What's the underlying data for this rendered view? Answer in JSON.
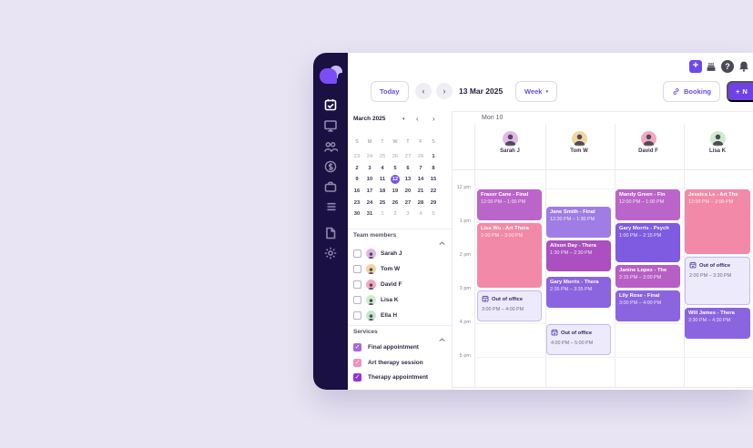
{
  "colors": {
    "accent": "#7048e8",
    "page_bg": "#e8e4f3",
    "sidebar_bg": "#1a1042",
    "selected_day_bg": "#7a52e8",
    "ooo_bg": "#edebfb",
    "ooo_border": "#c7baf3"
  },
  "topbar": {
    "icons": [
      "quick-add-icon",
      "whats-new-icon",
      "help-icon",
      "notifications-icon"
    ]
  },
  "header": {
    "today_label": "Today",
    "date_label": "13 Mar 2025",
    "view_label": "Week",
    "booking_label": "Booking",
    "new_label": "N"
  },
  "sidebar": {
    "icons": [
      "calendar-check",
      "monitor",
      "team",
      "payments",
      "briefcase",
      "list",
      "document",
      "settings"
    ],
    "active": "calendar-check"
  },
  "mini_calendar": {
    "month_label": "March 2025",
    "day_headers": [
      "S",
      "M",
      "T",
      "W",
      "T",
      "F",
      "S"
    ],
    "days": [
      {
        "d": "23",
        "muted": true
      },
      {
        "d": "24",
        "muted": true
      },
      {
        "d": "25",
        "muted": true
      },
      {
        "d": "26",
        "muted": true
      },
      {
        "d": "27",
        "muted": true
      },
      {
        "d": "28",
        "muted": true
      },
      {
        "d": "1"
      },
      {
        "d": "2"
      },
      {
        "d": "3"
      },
      {
        "d": "4"
      },
      {
        "d": "5"
      },
      {
        "d": "6"
      },
      {
        "d": "7"
      },
      {
        "d": "8"
      },
      {
        "d": "9"
      },
      {
        "d": "10"
      },
      {
        "d": "11"
      },
      {
        "d": "12",
        "selected": true
      },
      {
        "d": "13"
      },
      {
        "d": "14"
      },
      {
        "d": "15"
      },
      {
        "d": "16"
      },
      {
        "d": "17"
      },
      {
        "d": "18"
      },
      {
        "d": "19"
      },
      {
        "d": "20"
      },
      {
        "d": "21"
      },
      {
        "d": "22"
      },
      {
        "d": "23"
      },
      {
        "d": "24"
      },
      {
        "d": "25"
      },
      {
        "d": "26"
      },
      {
        "d": "27"
      },
      {
        "d": "28"
      },
      {
        "d": "29"
      },
      {
        "d": "30"
      },
      {
        "d": "31"
      },
      {
        "d": "1",
        "muted": true
      },
      {
        "d": "2",
        "muted": true
      },
      {
        "d": "3",
        "muted": true
      },
      {
        "d": "4",
        "muted": true
      },
      {
        "d": "5",
        "muted": true
      }
    ]
  },
  "team_members": {
    "title": "Team members",
    "members": [
      {
        "name": "Sarah J",
        "avatar_color": "#e3b7e8",
        "checked": false
      },
      {
        "name": "Tom W",
        "avatar_color": "#f0d6a0",
        "checked": false
      },
      {
        "name": "David F",
        "avatar_color": "#f2a8bd",
        "checked": false
      },
      {
        "name": "Lisa K",
        "avatar_color": "#cdeccb",
        "checked": false
      },
      {
        "name": "Ella H",
        "avatar_color": "#c2e8cd",
        "checked": false
      }
    ]
  },
  "services": {
    "title": "Services",
    "items": [
      {
        "label": "Final appointment",
        "color": "#a768d9",
        "checked": true
      },
      {
        "label": "Art therapy session",
        "color": "#f090bd",
        "checked": true
      },
      {
        "label": "Therapy appointment",
        "color": "#9c2fd0",
        "checked": true
      }
    ]
  },
  "calendar": {
    "day_label": "Mon 10",
    "time_labels": [
      "12 pm",
      "1 pm",
      "2 pm",
      "3 pm",
      "4 pm",
      "5 pm"
    ],
    "columns": [
      {
        "name": "Sarah J",
        "avatar_color": "#e3b7e8"
      },
      {
        "name": "Tom W",
        "avatar_color": "#f0d6a0"
      },
      {
        "name": "David F",
        "avatar_color": "#f2a8bd"
      },
      {
        "name": "Lisa K",
        "avatar_color": "#cdeccb"
      }
    ],
    "events": [
      {
        "col": 0,
        "kind": "appointment",
        "title": "Fraser Cane - Final",
        "time": "12:00 PM – 1:00 PM",
        "start": 12,
        "end": 13,
        "color": "#bb64c9"
      },
      {
        "col": 0,
        "kind": "appointment",
        "title": "Lisa Wu - Art Thera",
        "time": "1:00 PM – 3:00 PM",
        "start": 13,
        "end": 15,
        "color": "#f389a8"
      },
      {
        "col": 0,
        "kind": "out-of-office",
        "title": "Out of office",
        "time": "3:00 PM – 4:00 PM",
        "start": 15,
        "end": 16
      },
      {
        "col": 1,
        "kind": "appointment",
        "title": "Jane Smith - Final",
        "time": "12:30 PM – 1:30 PM",
        "start": 12.5,
        "end": 13.5,
        "color": "#9f7de4"
      },
      {
        "col": 1,
        "kind": "appointment",
        "title": "Alison Day - Thera",
        "time": "1:30 PM – 2:30 PM",
        "start": 13.5,
        "end": 14.5,
        "color": "#ab4fc1"
      },
      {
        "col": 1,
        "kind": "appointment",
        "title": "Gary Morris - Thera",
        "time": "2:35 PM – 3:35 PM",
        "start": 14.583,
        "end": 15.583,
        "color": "#8b64e0"
      },
      {
        "col": 1,
        "kind": "out-of-office",
        "title": "Out of office",
        "time": "4:00 PM – 5:00 PM",
        "start": 16,
        "end": 17
      },
      {
        "col": 2,
        "kind": "appointment",
        "title": "Mandy Green - Fin",
        "time": "12:00 PM – 1:00 PM",
        "start": 12,
        "end": 13,
        "color": "#bb64c9"
      },
      {
        "col": 2,
        "kind": "appointment",
        "title": "Gary Morris - Psych",
        "time": "1:00 PM – 2:15 PM",
        "start": 13,
        "end": 14.25,
        "color": "#7e5be0"
      },
      {
        "col": 2,
        "kind": "appointment",
        "title": "Janine Lopez - The",
        "time": "2:15 PM – 3:00 PM",
        "start": 14.25,
        "end": 15,
        "color": "#b75fc4"
      },
      {
        "col": 2,
        "kind": "appointment",
        "title": "Lily Rose - Final",
        "time": "3:00 PM – 4:00 PM",
        "start": 15,
        "end": 16,
        "color": "#8b64e0"
      },
      {
        "col": 3,
        "kind": "appointment",
        "title": "Jessica Le - Art The",
        "time": "12:00 PM – 2:00 PM",
        "start": 12,
        "end": 14,
        "color": "#f389a8"
      },
      {
        "col": 3,
        "kind": "out-of-office",
        "title": "Out of office",
        "time": "2:00 PM – 3:30 PM",
        "start": 14,
        "end": 15.5
      },
      {
        "col": 3,
        "kind": "appointment",
        "title": "Will James - Thera",
        "time": "3:30 PM – 4:30 PM",
        "start": 15.5,
        "end": 16.5,
        "color": "#8b64e0"
      }
    ]
  }
}
